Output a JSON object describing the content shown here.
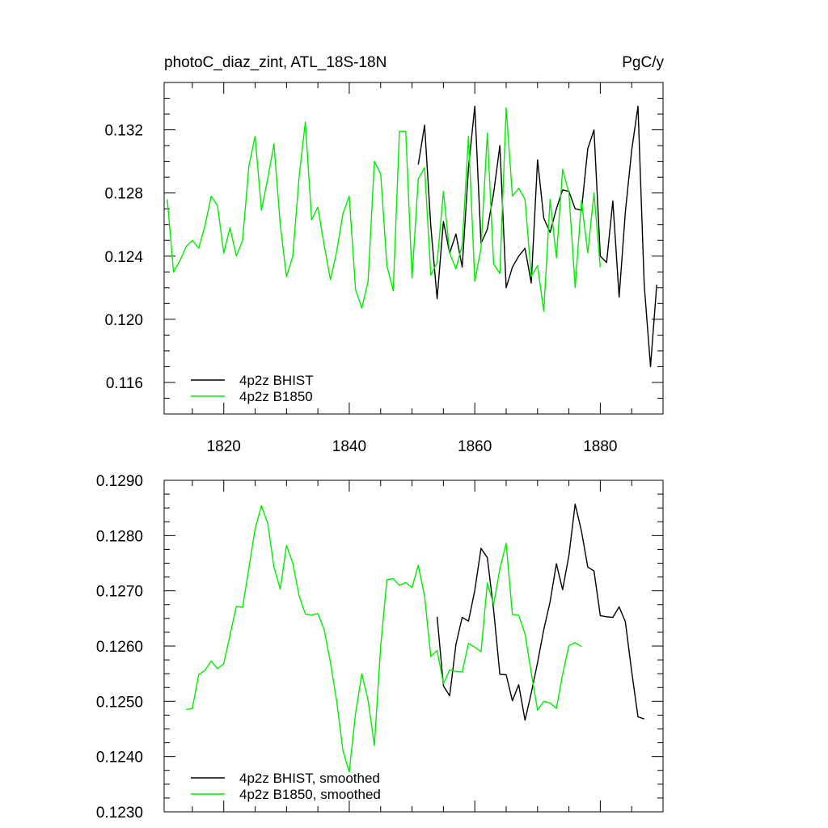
{
  "title_left": "photoC_diaz_zint, ATL_18S-18N",
  "title_right": "PgC/y",
  "colors": {
    "BHIST": "#000000",
    "B1850": "#00ee00"
  },
  "chart_data": [
    {
      "type": "line",
      "xlim": [
        1810.5,
        1890
      ],
      "ylim": [
        0.114,
        0.135
      ],
      "yticks": [
        0.116,
        0.12,
        0.124,
        0.128,
        0.132
      ],
      "ytick_labels": [
        "0.116",
        "0.120",
        "0.124",
        "0.128",
        "0.132"
      ],
      "xticks": [
        1820,
        1840,
        1860,
        1880
      ],
      "xtick_labels": [
        "1820",
        "1840",
        "1860",
        "1880"
      ],
      "legend_position": "bottom-left",
      "series": [
        {
          "name": "4p2z BHIST",
          "color": "#000000",
          "x": [
            1851,
            1852,
            1853,
            1854,
            1855,
            1856,
            1857,
            1858,
            1859,
            1860,
            1861,
            1862,
            1863,
            1864,
            1865,
            1866,
            1867,
            1868,
            1869,
            1870,
            1871,
            1872,
            1873,
            1874,
            1875,
            1876,
            1877,
            1878,
            1879,
            1880,
            1881,
            1882,
            1883,
            1884,
            1885,
            1886,
            1887,
            1888,
            1889
          ],
          "values": [
            0.1298,
            0.1323,
            0.1259,
            0.1213,
            0.1262,
            0.1242,
            0.1254,
            0.1233,
            0.1296,
            0.1335,
            0.1248,
            0.1257,
            0.128,
            0.131,
            0.122,
            0.1233,
            0.124,
            0.1245,
            0.1223,
            0.1301,
            0.1264,
            0.1255,
            0.127,
            0.1282,
            0.1281,
            0.127,
            0.1269,
            0.1308,
            0.132,
            0.124,
            0.1236,
            0.1275,
            0.1214,
            0.1268,
            0.1307,
            0.1335,
            0.1222,
            0.117,
            0.1222
          ]
        },
        {
          "name": "4p2z B1850",
          "color": "#00ee00",
          "x": [
            1811,
            1812,
            1813,
            1814,
            1815,
            1816,
            1817,
            1818,
            1819,
            1820,
            1821,
            1822,
            1823,
            1824,
            1825,
            1826,
            1827,
            1828,
            1829,
            1830,
            1831,
            1832,
            1833,
            1834,
            1835,
            1836,
            1837,
            1838,
            1839,
            1840,
            1841,
            1842,
            1843,
            1844,
            1845,
            1846,
            1847,
            1848,
            1849,
            1850,
            1851,
            1852,
            1853,
            1854,
            1855,
            1856,
            1857,
            1858,
            1859,
            1860,
            1861,
            1862,
            1863,
            1864,
            1865,
            1866,
            1867,
            1868,
            1869,
            1870,
            1871,
            1872,
            1873,
            1874,
            1875,
            1876,
            1877,
            1878,
            1879,
            1880
          ],
          "values": [
            0.1276,
            0.123,
            0.1237,
            0.1246,
            0.125,
            0.1245,
            0.1259,
            0.1278,
            0.1272,
            0.1242,
            0.1258,
            0.124,
            0.125,
            0.1297,
            0.1316,
            0.1269,
            0.1289,
            0.1311,
            0.126,
            0.1227,
            0.124,
            0.129,
            0.1325,
            0.1263,
            0.1271,
            0.1247,
            0.1225,
            0.1243,
            0.1267,
            0.1278,
            0.1219,
            0.1207,
            0.1224,
            0.13,
            0.1292,
            0.1234,
            0.1218,
            0.1319,
            0.1319,
            0.1226,
            0.1289,
            0.1296,
            0.1228,
            0.1236,
            0.1281,
            0.1242,
            0.1232,
            0.1247,
            0.1316,
            0.1224,
            0.1245,
            0.1318,
            0.1235,
            0.1229,
            0.1334,
            0.1278,
            0.1283,
            0.1276,
            0.1227,
            0.1234,
            0.1205,
            0.1276,
            0.1239,
            0.1295,
            0.128,
            0.122,
            0.1275,
            0.1242,
            0.128,
            0.1233
          ]
        }
      ]
    },
    {
      "type": "line",
      "xlim": [
        1810.5,
        1890
      ],
      "ylim": [
        0.123,
        0.129
      ],
      "yticks": [
        0.123,
        0.124,
        0.125,
        0.126,
        0.127,
        0.128,
        0.129
      ],
      "ytick_labels": [
        "0.1230",
        "0.1240",
        "0.1250",
        "0.1260",
        "0.1270",
        "0.1280",
        "0.1290"
      ],
      "xticks": [
        1820,
        1840,
        1860,
        1880
      ],
      "xtick_labels": [],
      "legend_position": "bottom-left",
      "series": [
        {
          "name": "4p2z BHIST, smoothed",
          "color": "#000000",
          "x": [
            1854,
            1855,
            1856,
            1857,
            1858,
            1859,
            1860,
            1861,
            1862,
            1863,
            1864,
            1865,
            1866,
            1867,
            1868,
            1869,
            1870,
            1871,
            1872,
            1873,
            1874,
            1875,
            1876,
            1877,
            1878,
            1879,
            1880,
            1881,
            1882,
            1883,
            1884,
            1885,
            1886,
            1887
          ],
          "values": [
            0.12653,
            0.12528,
            0.1251,
            0.12603,
            0.12652,
            0.12645,
            0.12701,
            0.12777,
            0.1276,
            0.12665,
            0.12549,
            0.12548,
            0.12501,
            0.1253,
            0.12466,
            0.12515,
            0.1257,
            0.1263,
            0.1268,
            0.12749,
            0.12702,
            0.12764,
            0.12857,
            0.12808,
            0.12743,
            0.12736,
            0.12655,
            0.12653,
            0.12652,
            0.12671,
            0.12644,
            0.12554,
            0.12472,
            0.12468
          ]
        },
        {
          "name": "4p2z B1850, smoothed",
          "color": "#00ee00",
          "x": [
            1814,
            1815,
            1816,
            1817,
            1818,
            1819,
            1820,
            1821,
            1822,
            1823,
            1824,
            1825,
            1826,
            1827,
            1828,
            1829,
            1830,
            1831,
            1832,
            1833,
            1834,
            1835,
            1836,
            1837,
            1838,
            1839,
            1840,
            1841,
            1842,
            1843,
            1844,
            1845,
            1846,
            1847,
            1848,
            1849,
            1850,
            1851,
            1852,
            1853,
            1854,
            1855,
            1856,
            1857,
            1858,
            1859,
            1860,
            1861,
            1862,
            1863,
            1864,
            1865,
            1866,
            1867,
            1868,
            1869,
            1870,
            1871,
            1872,
            1873,
            1874,
            1875,
            1876,
            1877
          ],
          "values": [
            0.12485,
            0.12487,
            0.12548,
            0.12556,
            0.12573,
            0.12559,
            0.12568,
            0.1262,
            0.12672,
            0.1267,
            0.12741,
            0.12812,
            0.12854,
            0.12822,
            0.12743,
            0.12703,
            0.12782,
            0.1275,
            0.12691,
            0.12658,
            0.12656,
            0.12659,
            0.1263,
            0.1257,
            0.125,
            0.1241,
            0.12372,
            0.12478,
            0.1255,
            0.12502,
            0.1242,
            0.126,
            0.1272,
            0.12722,
            0.1271,
            0.12715,
            0.12706,
            0.12746,
            0.1269,
            0.12581,
            0.12592,
            0.12532,
            0.12557,
            0.12554,
            0.12553,
            0.12605,
            0.12598,
            0.1259,
            0.12714,
            0.12675,
            0.1274,
            0.12786,
            0.12657,
            0.12656,
            0.12622,
            0.12552,
            0.12484,
            0.125,
            0.12497,
            0.12487,
            0.12549,
            0.12601,
            0.12606,
            0.12599
          ]
        }
      ]
    }
  ]
}
